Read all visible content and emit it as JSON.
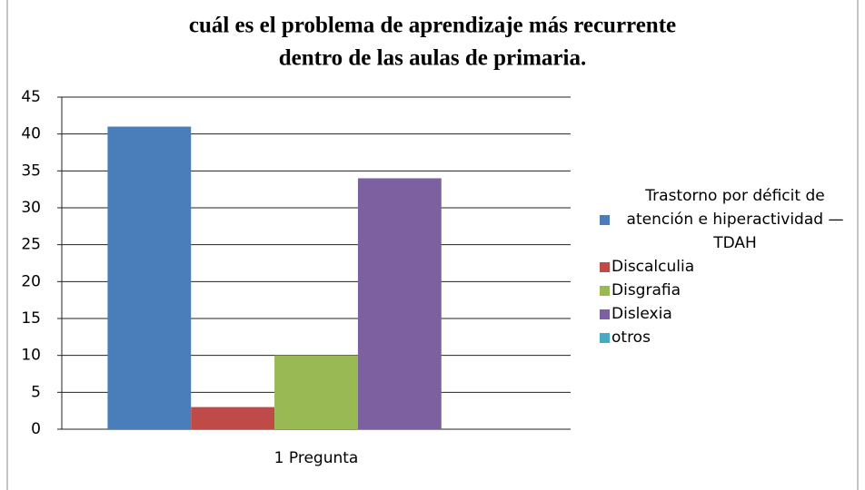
{
  "chart_data": {
    "type": "bar",
    "title": [
      "cuál es el problema de aprendizaje más recurrente",
      "dentro de las aulas de primaria."
    ],
    "categories": [
      "1 Pregunta"
    ],
    "series": [
      {
        "name": "Trastorno por déficit de atención e hiperactividad —TDAH",
        "color": "#4a7ebb",
        "values": [
          41
        ]
      },
      {
        "name": "Discalculia",
        "color": "#be4b48",
        "values": [
          3
        ]
      },
      {
        "name": "Disgrafia",
        "color": "#98b954",
        "values": [
          10
        ]
      },
      {
        "name": "Dislexia",
        "color": "#7d60a0",
        "values": [
          34
        ]
      },
      {
        "name": "otros",
        "color": "#46aac5",
        "values": [
          0
        ]
      }
    ],
    "ylim": [
      0,
      45
    ],
    "yticks": [
      0,
      5,
      10,
      15,
      20,
      25,
      30,
      35,
      40,
      45
    ],
    "grid": true,
    "legend": "right"
  }
}
